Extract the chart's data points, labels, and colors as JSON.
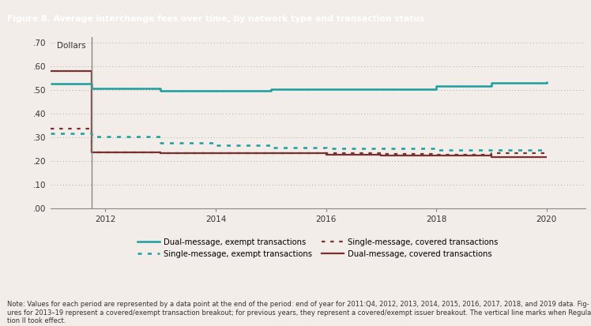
{
  "title": "Figure 8. Average interchange fees over time, by network type and transaction status",
  "title_bg_color": "#2e9ea0",
  "title_text_color": "#ffffff",
  "plot_bg_color": "#f2ede8",
  "fig_bg_color": "#f2ede8",
  "ylabel": "Dollars",
  "ylim": [
    0.0,
    0.72
  ],
  "yticks": [
    0.0,
    0.1,
    0.2,
    0.3,
    0.4,
    0.5,
    0.6,
    0.7
  ],
  "ytick_labels": [
    ".00",
    ".10",
    ".20",
    ".30",
    ".40",
    ".50",
    ".60",
    ".70"
  ],
  "xlim": [
    2011.0,
    2020.7
  ],
  "xticks": [
    2012,
    2014,
    2016,
    2018,
    2020
  ],
  "vertical_line_x": 2011.75,
  "note_text": "Note: Values for each period are represented by a data point at the end of the period: end of year for 2011:Q4, 2012, 2013, 2014, 2015, 2016, 2017, 2018, and 2019 data. Figures for 2013–19 represent a covered/exempt transaction breakout; for previous years, they represent a covered/exempt issuer breakout. The vertical line marks when Regula-\ntion II took effect.",
  "series": {
    "dual_exempt": {
      "label": "Dual-message, exempt transactions",
      "color": "#1a9e9e",
      "linestyle": "solid",
      "linewidth": 1.8,
      "x": [
        2011.0,
        2011.75,
        2012.0,
        2013.0,
        2014.0,
        2015.0,
        2016.0,
        2017.0,
        2018.0,
        2019.0,
        2020.0
      ],
      "y": [
        0.527,
        0.505,
        0.505,
        0.497,
        0.497,
        0.503,
        0.503,
        0.503,
        0.515,
        0.53,
        0.535
      ]
    },
    "single_exempt": {
      "label": "Single-message, exempt transactions",
      "color": "#1a9e9e",
      "linestyle": "dotted",
      "linewidth": 1.8,
      "x": [
        2011.0,
        2011.75,
        2012.0,
        2013.0,
        2014.0,
        2015.0,
        2016.0,
        2017.0,
        2018.0,
        2019.0,
        2020.0
      ],
      "y": [
        0.315,
        0.302,
        0.302,
        0.278,
        0.268,
        0.258,
        0.255,
        0.255,
        0.248,
        0.248,
        0.248
      ]
    },
    "single_covered": {
      "label": "Single-message, covered transactions",
      "color": "#7a3030",
      "linestyle": "dotted",
      "linewidth": 1.6,
      "x": [
        2011.0,
        2011.75,
        2012.0,
        2013.0,
        2014.0,
        2015.0,
        2016.0,
        2017.0,
        2018.0,
        2019.0,
        2020.0
      ],
      "y": [
        0.338,
        0.238,
        0.238,
        0.235,
        0.235,
        0.232,
        0.232,
        0.23,
        0.228,
        0.232,
        0.232
      ]
    },
    "dual_covered": {
      "label": "Dual-message, covered transactions",
      "color": "#7a3030",
      "linestyle": "solid",
      "linewidth": 1.6,
      "x": [
        2011.0,
        2011.75,
        2012.0,
        2013.0,
        2014.0,
        2015.0,
        2016.0,
        2017.0,
        2018.0,
        2019.0,
        2020.0
      ],
      "y": [
        0.58,
        0.238,
        0.238,
        0.235,
        0.232,
        0.232,
        0.228,
        0.225,
        0.222,
        0.218,
        0.218
      ]
    }
  }
}
